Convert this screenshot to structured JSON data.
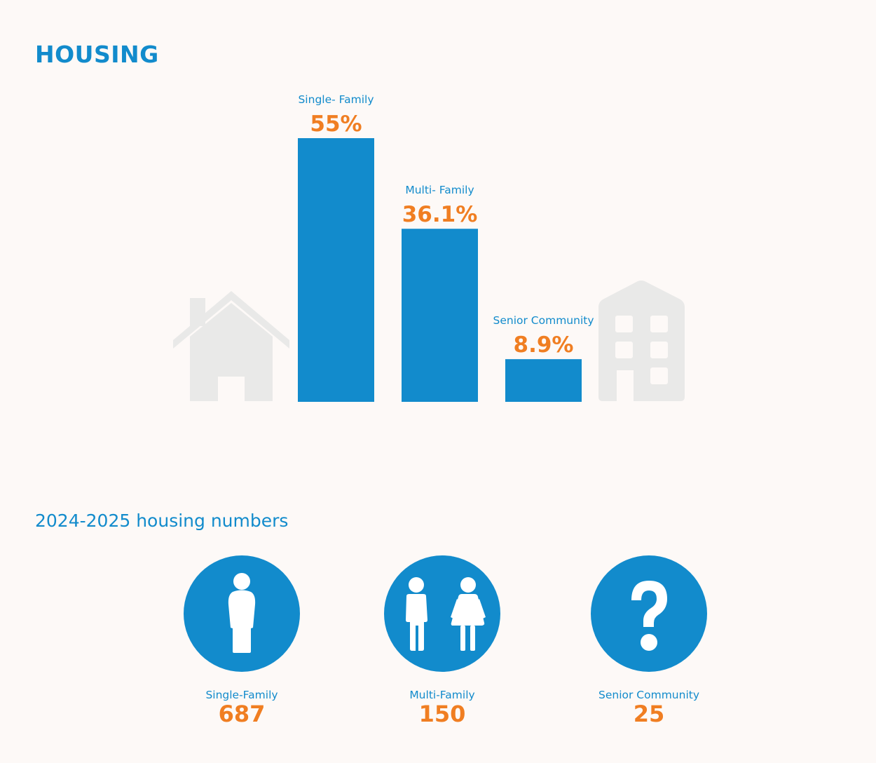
{
  "header": {
    "title": "HOUSING"
  },
  "chart_data": {
    "type": "bar",
    "categories": [
      "Single- Family",
      "Multi- Family",
      "Senior Community"
    ],
    "values": [
      55,
      36.1,
      8.9
    ],
    "value_labels": [
      "55%",
      "36.1%",
      "8.9%"
    ],
    "ylim": [
      0,
      55
    ],
    "grid": false,
    "bar_color": "#128bcc",
    "label_color": "#128bcc",
    "value_color": "#f07e22"
  },
  "numbers": {
    "title": "2024-2025 housing numbers",
    "items": [
      {
        "label": "Single-Family",
        "value": "687",
        "icon": "person-icon"
      },
      {
        "label": "Multi-Family",
        "value": "150",
        "icon": "couple-icon"
      },
      {
        "label": "Senior Community",
        "value": "25",
        "icon": "question-mark-icon"
      }
    ]
  },
  "colors": {
    "accent": "#128bcc",
    "highlight": "#f07e22",
    "icon_gray": "#e9e9e8",
    "background": "#fdf9f7"
  }
}
